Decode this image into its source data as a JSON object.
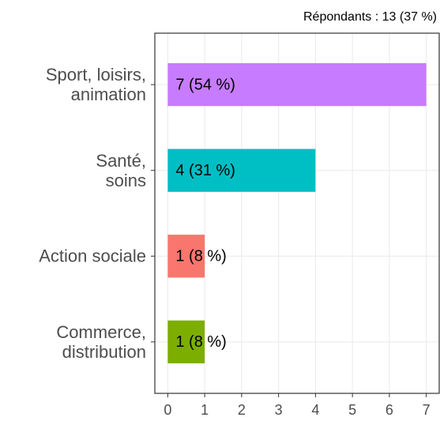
{
  "chart_data": {
    "type": "bar",
    "orientation": "horizontal",
    "annotation": "Répondants : 13 (37 %)",
    "categories": [
      "Sport, loisirs,\nanimation",
      "Santé,\nsoins",
      "Action sociale",
      "Commerce,\ndistribution"
    ],
    "values": [
      7,
      4,
      1,
      1
    ],
    "value_labels": [
      "7 (54 %)",
      "4 (31 %)",
      "1 (8 %)",
      "1 (8 %)"
    ],
    "colors": [
      "#c77cff",
      "#00bfc4",
      "#f8766d",
      "#7cae00"
    ],
    "xlim": [
      -0.35,
      7.35
    ],
    "xticks": [
      0,
      1,
      2,
      3,
      4,
      5,
      6,
      7
    ],
    "grid": true
  }
}
